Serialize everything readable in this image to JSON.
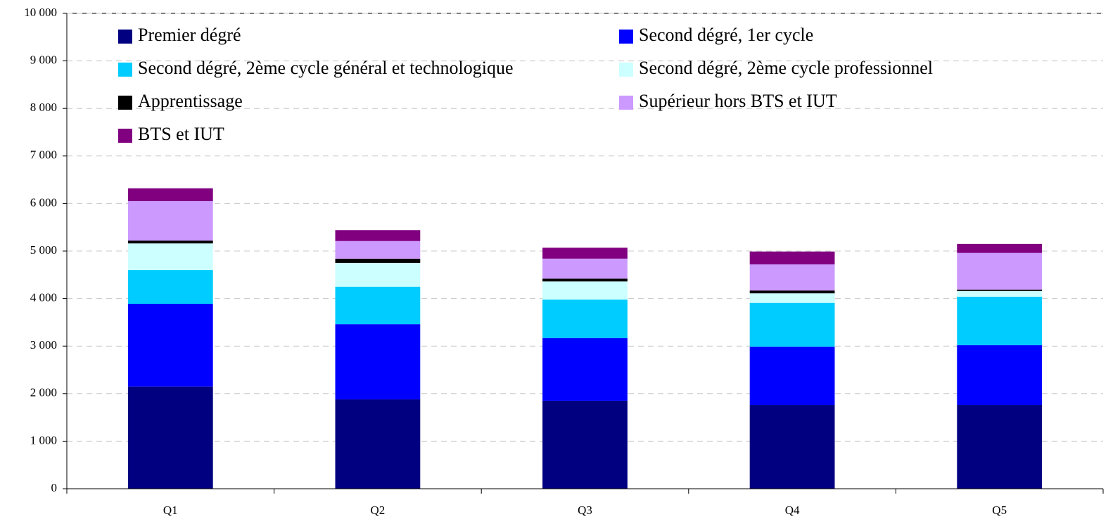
{
  "chart_data": {
    "type": "stacked-bar",
    "categories": [
      "Q1",
      "Q2",
      "Q3",
      "Q4",
      "Q5"
    ],
    "series": [
      {
        "name": "Premier dégré",
        "color": "#000080",
        "values": [
          2150,
          1880,
          1850,
          1760,
          1760
        ]
      },
      {
        "name": "Second dégré, 1er cycle",
        "color": "#0000ff",
        "values": [
          1740,
          1580,
          1320,
          1230,
          1260
        ]
      },
      {
        "name": "Second dégré, 2ème cycle général et technologique",
        "color": "#00ccff",
        "values": [
          710,
          790,
          810,
          920,
          1020
        ]
      },
      {
        "name": "Second dégré, 2ème cycle professionnel",
        "color": "#ccffff",
        "values": [
          560,
          500,
          380,
          200,
          120
        ]
      },
      {
        "name": "Apprentissage",
        "color": "#000000",
        "values": [
          60,
          90,
          60,
          60,
          30
        ]
      },
      {
        "name": "Supérieur hors BTS et IUT",
        "color": "#cc99ff",
        "values": [
          830,
          370,
          420,
          550,
          770
        ]
      },
      {
        "name": "BTS et IUT",
        "color": "#800080",
        "values": [
          270,
          230,
          230,
          270,
          190
        ]
      }
    ],
    "ylim": [
      0,
      10000
    ],
    "yticks": [
      0,
      {
        "value": 1000,
        "label": "1 000"
      },
      {
        "value": 2000,
        "label": "2 000"
      },
      {
        "value": 3000,
        "label": "3 000"
      },
      {
        "value": 4000,
        "label": "4 000"
      },
      {
        "value": 5000,
        "label": "5 000"
      },
      {
        "value": 6000,
        "label": "6 000"
      },
      {
        "value": 7000,
        "label": "7 000"
      },
      {
        "value": 8000,
        "label": "8 000"
      },
      {
        "value": 9000,
        "label": "9 000"
      },
      {
        "value": 10000,
        "label": "10 000"
      }
    ],
    "grid": true,
    "legend": "top"
  }
}
